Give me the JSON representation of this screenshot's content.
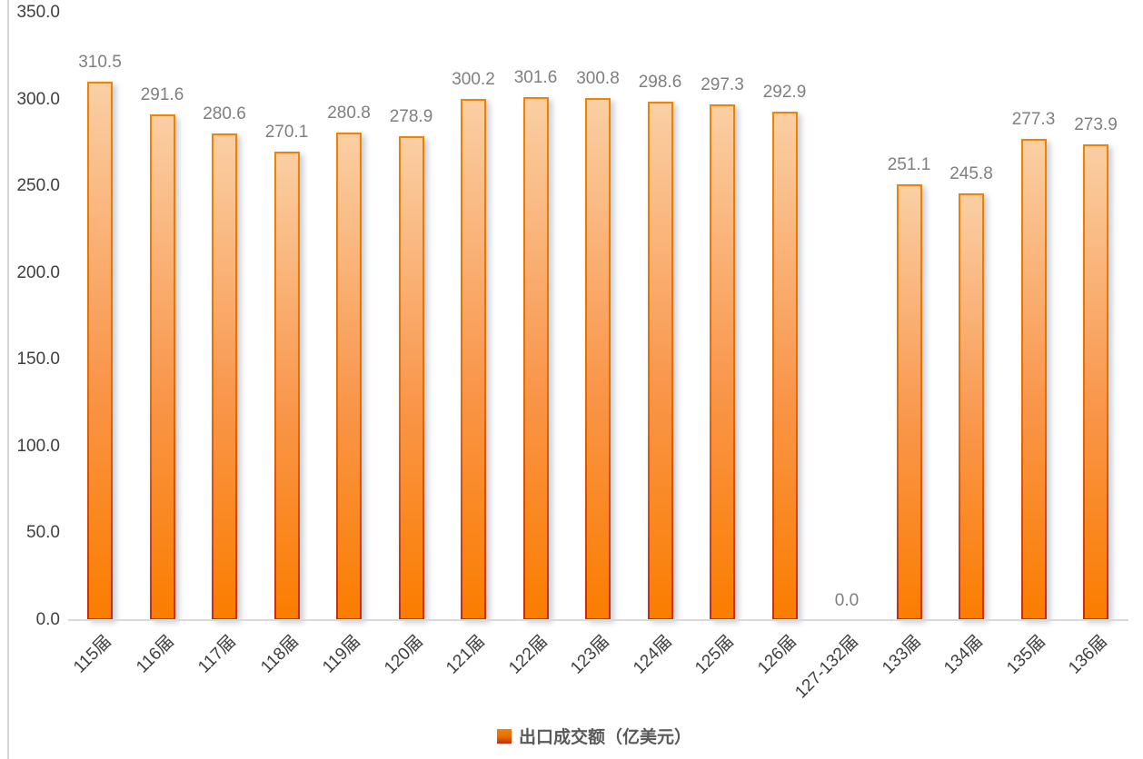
{
  "chart_data": {
    "type": "bar",
    "title": "",
    "xlabel": "",
    "ylabel": "",
    "categories": [
      "115届",
      "116届",
      "117届",
      "118届",
      "119届",
      "120届",
      "121届",
      "122届",
      "123届",
      "124届",
      "125届",
      "126届",
      "127-132届",
      "133届",
      "134届",
      "135届",
      "136届"
    ],
    "values": [
      310.5,
      291.6,
      280.6,
      270.1,
      280.8,
      278.9,
      300.2,
      301.6,
      300.8,
      298.6,
      297.3,
      292.9,
      0.0,
      251.1,
      245.8,
      277.3,
      273.9
    ],
    "series_name": "出口成交额（亿美元）",
    "ylim": [
      0,
      350
    ],
    "ytick_labels": [
      "0.0",
      "50.0",
      "100.0",
      "150.0",
      "200.0",
      "250.0",
      "300.0",
      "350.0"
    ],
    "ytick_values": [
      0,
      50,
      100,
      150,
      200,
      250,
      300,
      350
    ],
    "grid": false,
    "data_labels": true,
    "legend": {
      "position": "bottom",
      "label": "出口成交额（亿美元）"
    },
    "colors": {
      "bar_fill_top": "#FACFA4",
      "bar_fill_mid": "#F9964B",
      "bar_fill_bottom": "#FB7D00",
      "bar_border_top": "#F18300",
      "bar_border_mid": "#E66C00",
      "bar_border_bottom": "#C32C10",
      "value_label": "#7F7F7F",
      "axis_text": "#3F3F3F",
      "axis_line": "#D9D9D9",
      "legend_text": "#595959",
      "background": "#FFFFFF"
    }
  }
}
